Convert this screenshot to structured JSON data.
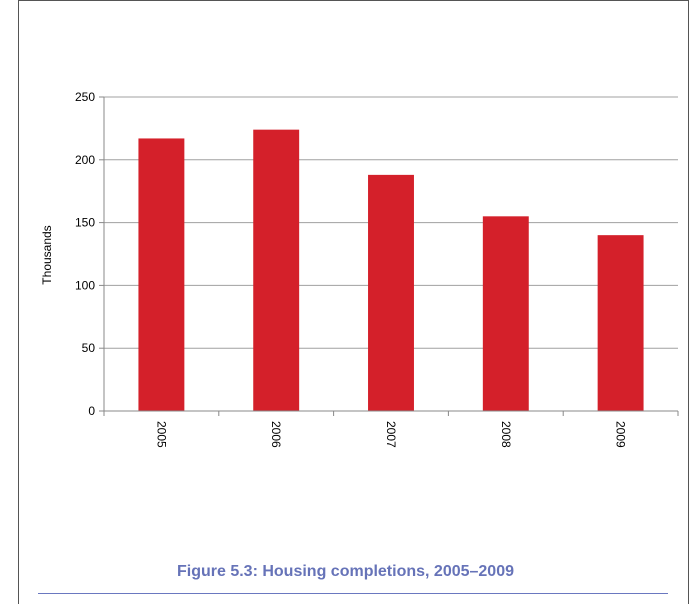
{
  "chart_data": {
    "type": "bar",
    "categories": [
      "2005",
      "2006",
      "2007",
      "2008",
      "2009"
    ],
    "values": [
      217,
      224,
      188,
      155,
      140
    ],
    "title": "Figure 5.3: Housing completions, 2005–2009",
    "xlabel": "",
    "ylabel": "Thousands",
    "ylim": [
      0,
      250
    ],
    "yticks": [
      0,
      50,
      100,
      150,
      200,
      250
    ],
    "grid": true,
    "legend": "none",
    "colors": {
      "bar": "#d4202a",
      "grid": "#a0a0a0",
      "title": "#6673b8",
      "rule": "#6a78c0"
    }
  }
}
